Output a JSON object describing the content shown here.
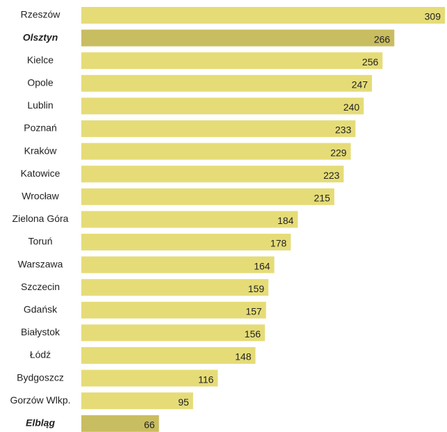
{
  "chart_data": {
    "type": "bar",
    "orientation": "horizontal",
    "categories": [
      "Rzeszów",
      "Olsztyn",
      "Kielce",
      "Opole",
      "Lublin",
      "Poznań",
      "Kraków",
      "Katowice",
      "Wrocław",
      "Zielona Góra",
      "Toruń",
      "Warszawa",
      "Szczecin",
      "Gdańsk",
      "Białystok",
      "Łódź",
      "Bydgoszcz",
      "Gorzów Wlkp.",
      "Elbląg"
    ],
    "values": [
      309,
      266,
      256,
      247,
      240,
      233,
      229,
      223,
      215,
      184,
      178,
      164,
      159,
      157,
      156,
      148,
      116,
      95,
      66
    ],
    "highlight": [
      false,
      true,
      false,
      false,
      false,
      false,
      false,
      false,
      false,
      false,
      false,
      false,
      false,
      false,
      false,
      false,
      false,
      false,
      true
    ],
    "color": "#e5dc78",
    "highlight_color": "#c9bd61"
  }
}
